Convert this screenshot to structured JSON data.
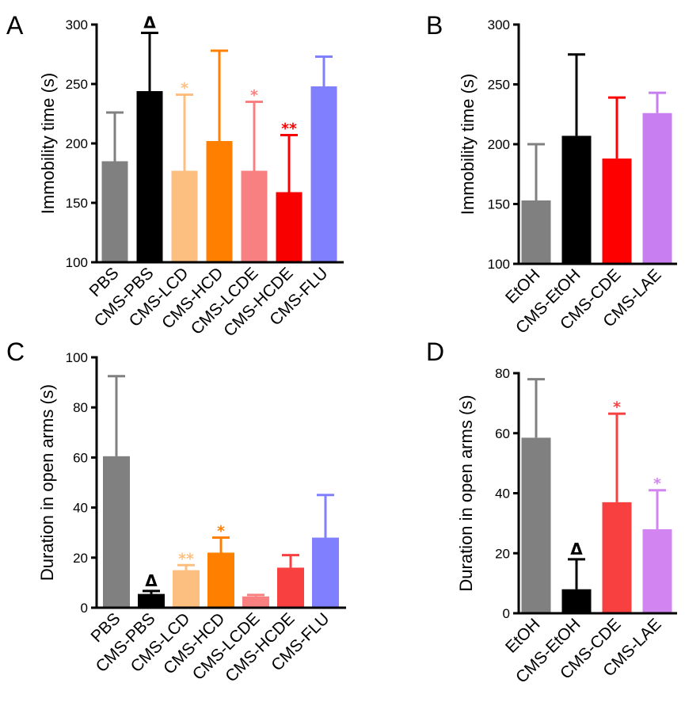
{
  "chart_data": [
    {
      "panel": "A",
      "type": "bar",
      "categories": [
        "PBS",
        "CMS-PBS",
        "CMS-LCD",
        "CMS-HCD",
        "CMS-LCDE",
        "CMS-HCDE",
        "CMS-FLU"
      ],
      "values": [
        185,
        244,
        177,
        202,
        177,
        159,
        248
      ],
      "errors": [
        41,
        49,
        64,
        76,
        58,
        48,
        25
      ],
      "colors": [
        "#808080",
        "#000000",
        "#FDBF80",
        "#FF8000",
        "#F98080",
        "#F80000",
        "#8080FF"
      ],
      "annotations": [
        "",
        "Δ",
        "*",
        "",
        "*",
        "**",
        ""
      ],
      "ylabel": "Immobility time (s)",
      "xlabel": "",
      "ylim": [
        100,
        300
      ],
      "yticks": [
        100,
        150,
        200,
        250,
        300
      ]
    },
    {
      "panel": "B",
      "type": "bar",
      "categories": [
        "EtOH",
        "CMS-EtOH",
        "CMS-CDE",
        "CMS-LAE"
      ],
      "values": [
        153,
        207,
        188,
        226
      ],
      "errors": [
        47,
        68,
        51,
        17
      ],
      "colors": [
        "#808080",
        "#000000",
        "#FF0000",
        "#C87EF0"
      ],
      "annotations": [
        "",
        "",
        "",
        ""
      ],
      "ylabel": "Immobility time (s)",
      "xlabel": "",
      "ylim": [
        100,
        300
      ],
      "yticks": [
        100,
        150,
        200,
        250,
        300
      ]
    },
    {
      "panel": "C",
      "type": "bar",
      "categories": [
        "PBS",
        "CMS-PBS",
        "CMS-LCD",
        "CMS-HCD",
        "CMS-LCDE",
        "CMS-HCDE",
        "CMS-FLU"
      ],
      "values": [
        60.5,
        5.5,
        15,
        22,
        4.5,
        16,
        28
      ],
      "errors": [
        32,
        1.2,
        2,
        6,
        0.6,
        5,
        17
      ],
      "colors": [
        "#808080",
        "#000000",
        "#FDBF80",
        "#FF8000",
        "#F98080",
        "#F84040",
        "#8080FF"
      ],
      "annotations": [
        "",
        "Δ",
        "**",
        "*",
        "",
        "",
        ""
      ],
      "ylabel": "Duration in open arms (s)",
      "xlabel": "",
      "ylim": [
        0,
        100
      ],
      "yticks": [
        0,
        20,
        40,
        60,
        80,
        100
      ]
    },
    {
      "panel": "D",
      "type": "bar",
      "categories": [
        "EtOH",
        "CMS-EtOH",
        "CMS-CDE",
        "CMS-LAE"
      ],
      "values": [
        58.5,
        8,
        37,
        28
      ],
      "errors": [
        19.5,
        10,
        29.5,
        13
      ],
      "colors": [
        "#808080",
        "#000000",
        "#F84040",
        "#D285F0"
      ],
      "annotations": [
        "",
        "Δ",
        "*",
        "*"
      ],
      "ylabel": "Duration in open arms (s)",
      "xlabel": "",
      "ylim": [
        0,
        80
      ],
      "yticks": [
        0,
        20,
        40,
        60,
        80
      ]
    }
  ]
}
